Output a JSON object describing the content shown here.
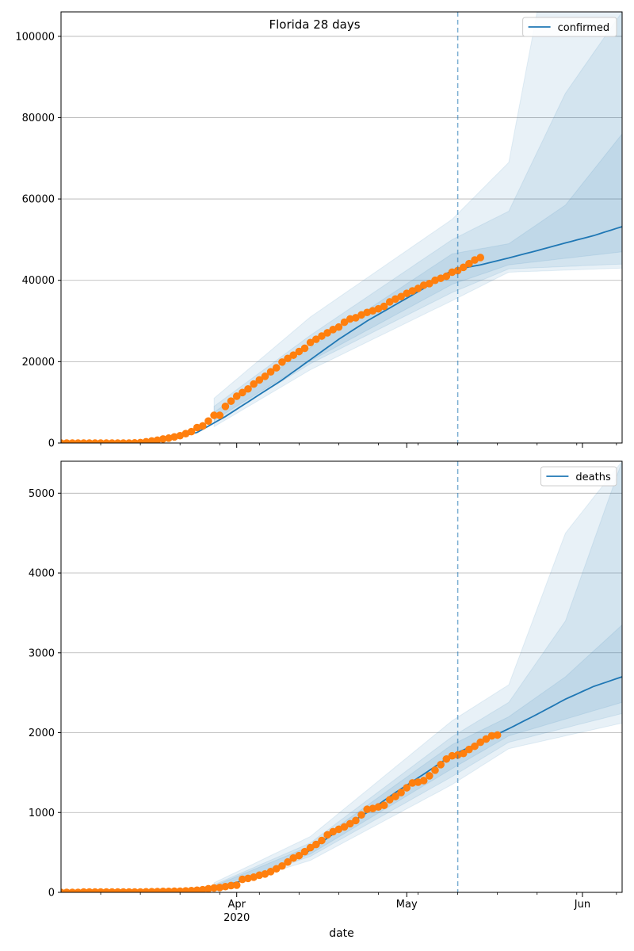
{
  "chart_data": [
    {
      "type": "line",
      "title": "Florida 28 days",
      "xlabel": "",
      "ylabel": "",
      "ylim": [
        0,
        106000
      ],
      "yticks": [
        0,
        20000,
        40000,
        60000,
        80000,
        100000
      ],
      "grid": "horizontal",
      "legend": {
        "position": "top-right",
        "entries": [
          "confirmed"
        ]
      },
      "forecast_start": "2020-05-10",
      "series": [
        {
          "name": "confirmed",
          "kind": "model-median",
          "points": [
            [
              "2020-03-01",
              0
            ],
            [
              "2020-03-10",
              20
            ],
            [
              "2020-03-15",
              200
            ],
            [
              "2020-03-20",
              900
            ],
            [
              "2020-03-25",
              2600
            ],
            [
              "2020-03-30",
              6500
            ],
            [
              "2020-04-04",
              11000
            ],
            [
              "2020-04-09",
              15500
            ],
            [
              "2020-04-14",
              20500
            ],
            [
              "2020-04-19",
              25500
            ],
            [
              "2020-04-24",
              30000
            ],
            [
              "2020-04-29",
              34000
            ],
            [
              "2020-05-04",
              38000
            ],
            [
              "2020-05-09",
              42500
            ],
            [
              "2020-05-14",
              43800
            ],
            [
              "2020-05-19",
              45500
            ],
            [
              "2020-05-24",
              47300
            ],
            [
              "2020-05-29",
              49200
            ],
            [
              "2020-06-03",
              51000
            ],
            [
              "2020-06-08",
              53200
            ]
          ]
        },
        {
          "name": "observed",
          "kind": "markers",
          "start": "2020-03-01",
          "values": [
            0,
            0,
            0,
            0,
            0,
            0,
            0,
            0,
            0,
            0,
            0,
            0,
            0,
            30,
            100,
            300,
            500,
            700,
            1000,
            1200,
            1500,
            1800,
            2300,
            2800,
            3800,
            4200,
            5400,
            6800,
            6800,
            9000,
            10300,
            11500,
            12400,
            13300,
            14500,
            15500,
            16400,
            17500,
            18500,
            19900,
            20800,
            21600,
            22500,
            23300,
            24700,
            25500,
            26300,
            27100,
            27900,
            28500,
            29700,
            30500,
            30800,
            31500,
            32100,
            32500,
            33000,
            33600,
            34700,
            35400,
            36000,
            36800,
            37400,
            38000,
            38800,
            39200,
            40000,
            40500,
            41000,
            42000,
            42400,
            43200,
            44100,
            45000,
            45600
          ]
        }
      ],
      "bands": [
        {
          "level": "outer",
          "lower": [
            [
              "2020-03-28",
              4000
            ],
            [
              "2020-04-14",
              18000
            ],
            [
              "2020-05-09",
              35000
            ],
            [
              "2020-05-19",
              42000
            ],
            [
              "2020-06-08",
              43000
            ]
          ],
          "upper": [
            [
              "2020-03-28",
              11000
            ],
            [
              "2020-04-14",
              31000
            ],
            [
              "2020-05-09",
              55000
            ],
            [
              "2020-05-19",
              69000
            ],
            [
              "2020-05-24",
              106000
            ],
            [
              "2020-06-08",
              106000
            ]
          ]
        },
        {
          "level": "middle",
          "lower": [
            [
              "2020-03-28",
              5000
            ],
            [
              "2020-04-14",
              19500
            ],
            [
              "2020-05-09",
              37000
            ],
            [
              "2020-05-19",
              42800
            ],
            [
              "2020-06-08",
              44000
            ]
          ],
          "upper": [
            [
              "2020-03-28",
              9000
            ],
            [
              "2020-04-14",
              26500
            ],
            [
              "2020-05-09",
              50000
            ],
            [
              "2020-05-19",
              57000
            ],
            [
              "2020-05-29",
              86000
            ],
            [
              "2020-06-08",
              106000
            ]
          ]
        },
        {
          "level": "inner",
          "lower": [
            [
              "2020-03-28",
              5600
            ],
            [
              "2020-04-14",
              20200
            ],
            [
              "2020-05-09",
              39000
            ],
            [
              "2020-05-19",
              43800
            ],
            [
              "2020-06-08",
              47000
            ]
          ],
          "upper": [
            [
              "2020-03-28",
              7600
            ],
            [
              "2020-04-14",
              23500
            ],
            [
              "2020-05-09",
              46500
            ],
            [
              "2020-05-19",
              49000
            ],
            [
              "2020-05-29",
              58500
            ],
            [
              "2020-06-08",
              76000
            ]
          ]
        }
      ]
    },
    {
      "type": "line",
      "title": "",
      "xlabel": "date",
      "ylabel": "",
      "ylim": [
        0,
        5400
      ],
      "yticks": [
        0,
        1000,
        2000,
        3000,
        4000,
        5000
      ],
      "xticks": [
        {
          "date": "2020-04-01",
          "label": "Apr",
          "sublabel": "2020"
        },
        {
          "date": "2020-05-01",
          "label": "May"
        },
        {
          "date": "2020-06-01",
          "label": "Jun"
        }
      ],
      "grid": "horizontal",
      "legend": {
        "position": "top-right",
        "entries": [
          "deaths"
        ]
      },
      "forecast_start": "2020-05-10",
      "series": [
        {
          "name": "deaths",
          "kind": "model-median",
          "points": [
            [
              "2020-03-01",
              0
            ],
            [
              "2020-03-20",
              20
            ],
            [
              "2020-03-25",
              50
            ],
            [
              "2020-03-30",
              90
            ],
            [
              "2020-04-04",
              180
            ],
            [
              "2020-04-09",
              330
            ],
            [
              "2020-04-14",
              530
            ],
            [
              "2020-04-19",
              780
            ],
            [
              "2020-04-24",
              1000
            ],
            [
              "2020-04-29",
              1250
            ],
            [
              "2020-05-04",
              1480
            ],
            [
              "2020-05-09",
              1720
            ],
            [
              "2020-05-14",
              1880
            ],
            [
              "2020-05-19",
              2050
            ],
            [
              "2020-05-24",
              2230
            ],
            [
              "2020-05-29",
              2420
            ],
            [
              "2020-06-03",
              2580
            ],
            [
              "2020-06-08",
              2700
            ]
          ]
        },
        {
          "name": "observed",
          "kind": "markers",
          "start": "2020-03-01",
          "values": [
            0,
            0,
            0,
            0,
            5,
            5,
            5,
            5,
            5,
            5,
            5,
            5,
            5,
            5,
            5,
            7,
            8,
            10,
            12,
            12,
            14,
            15,
            18,
            22,
            27,
            33,
            45,
            55,
            60,
            72,
            85,
            90,
            163,
            175,
            190,
            215,
            230,
            260,
            295,
            330,
            380,
            430,
            460,
            510,
            560,
            600,
            650,
            720,
            760,
            790,
            820,
            860,
            900,
            970,
            1040,
            1050,
            1070,
            1090,
            1160,
            1200,
            1250,
            1310,
            1370,
            1380,
            1400,
            1460,
            1530,
            1600,
            1670,
            1710,
            1720,
            1740,
            1790,
            1830,
            1880,
            1920,
            1960,
            1970
          ]
        }
      ],
      "bands": [
        {
          "level": "outer",
          "lower": [
            [
              "2020-03-28",
              30
            ],
            [
              "2020-04-14",
              400
            ],
            [
              "2020-05-09",
              1350
            ],
            [
              "2020-05-19",
              1800
            ],
            [
              "2020-06-08",
              2120
            ]
          ],
          "upper": [
            [
              "2020-03-28",
              120
            ],
            [
              "2020-04-14",
              700
            ],
            [
              "2020-05-09",
              2150
            ],
            [
              "2020-05-19",
              2600
            ],
            [
              "2020-05-29",
              4500
            ],
            [
              "2020-06-08",
              5400
            ]
          ]
        },
        {
          "level": "middle",
          "lower": [
            [
              "2020-03-28",
              40
            ],
            [
              "2020-04-14",
              450
            ],
            [
              "2020-05-09",
              1450
            ],
            [
              "2020-05-19",
              1880
            ],
            [
              "2020-06-08",
              2240
            ]
          ],
          "upper": [
            [
              "2020-03-28",
              95
            ],
            [
              "2020-04-14",
              620
            ],
            [
              "2020-05-09",
              1950
            ],
            [
              "2020-05-19",
              2380
            ],
            [
              "2020-05-29",
              3400
            ],
            [
              "2020-06-08",
              5400
            ]
          ]
        },
        {
          "level": "inner",
          "lower": [
            [
              "2020-03-28",
              50
            ],
            [
              "2020-04-14",
              480
            ],
            [
              "2020-05-09",
              1550
            ],
            [
              "2020-05-19",
              1960
            ],
            [
              "2020-06-08",
              2380
            ]
          ],
          "upper": [
            [
              "2020-03-28",
              80
            ],
            [
              "2020-04-14",
              580
            ],
            [
              "2020-05-09",
              1850
            ],
            [
              "2020-05-19",
              2200
            ],
            [
              "2020-05-29",
              2700
            ],
            [
              "2020-06-08",
              3350
            ]
          ]
        }
      ]
    }
  ],
  "colors": {
    "line": "#1f77b4",
    "markers": "#ff7f0e",
    "band": "#1f77b4",
    "grid": "#b0b0b0",
    "forecast_line": "#1f77b4"
  }
}
